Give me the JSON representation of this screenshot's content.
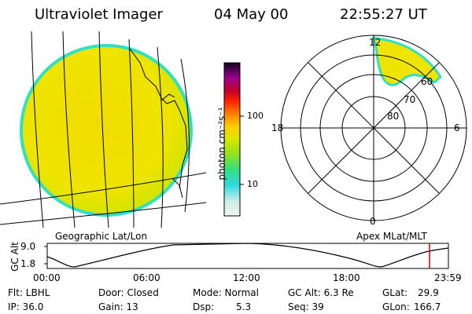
{
  "header": {
    "title": "Ultraviolet Imager",
    "date": "04 May 00",
    "time": "22:55:27 UT"
  },
  "colorbar": {
    "unit": "photon cm⁻²s⁻¹",
    "ticks": [
      "100",
      "10"
    ]
  },
  "polar": {
    "mlt_labels": {
      "top": "12",
      "left": "18",
      "right": "6",
      "bottom": "0"
    },
    "lat_labels": [
      "60",
      "70",
      "80"
    ],
    "caption": "Apex MLat/MLT"
  },
  "geo": {
    "caption": "Geographic Lat/Lon"
  },
  "altplot": {
    "ylabel": "GC Alt",
    "yticks": [
      "9.0",
      "1.8"
    ],
    "xticks": [
      "00:00",
      "06:00",
      "12:00",
      "18:00",
      "23:59"
    ]
  },
  "info": {
    "row1": [
      "Flt: LBHL",
      "Door: Closed",
      "Mode: Normal",
      "GC Alt: 6.3 Re",
      "GLat:",
      "29.9"
    ],
    "row2": [
      "IP: 36.0",
      "Gain: 13",
      "Dsp:",
      "5.3",
      "Seq: 39",
      "GLon:",
      "166.7"
    ]
  },
  "colors": {
    "disk_yellow": "#f2e600",
    "disk_green": "#b8e000",
    "limb_cyan": "#30e0c0",
    "marker_red": "#e00000"
  }
}
